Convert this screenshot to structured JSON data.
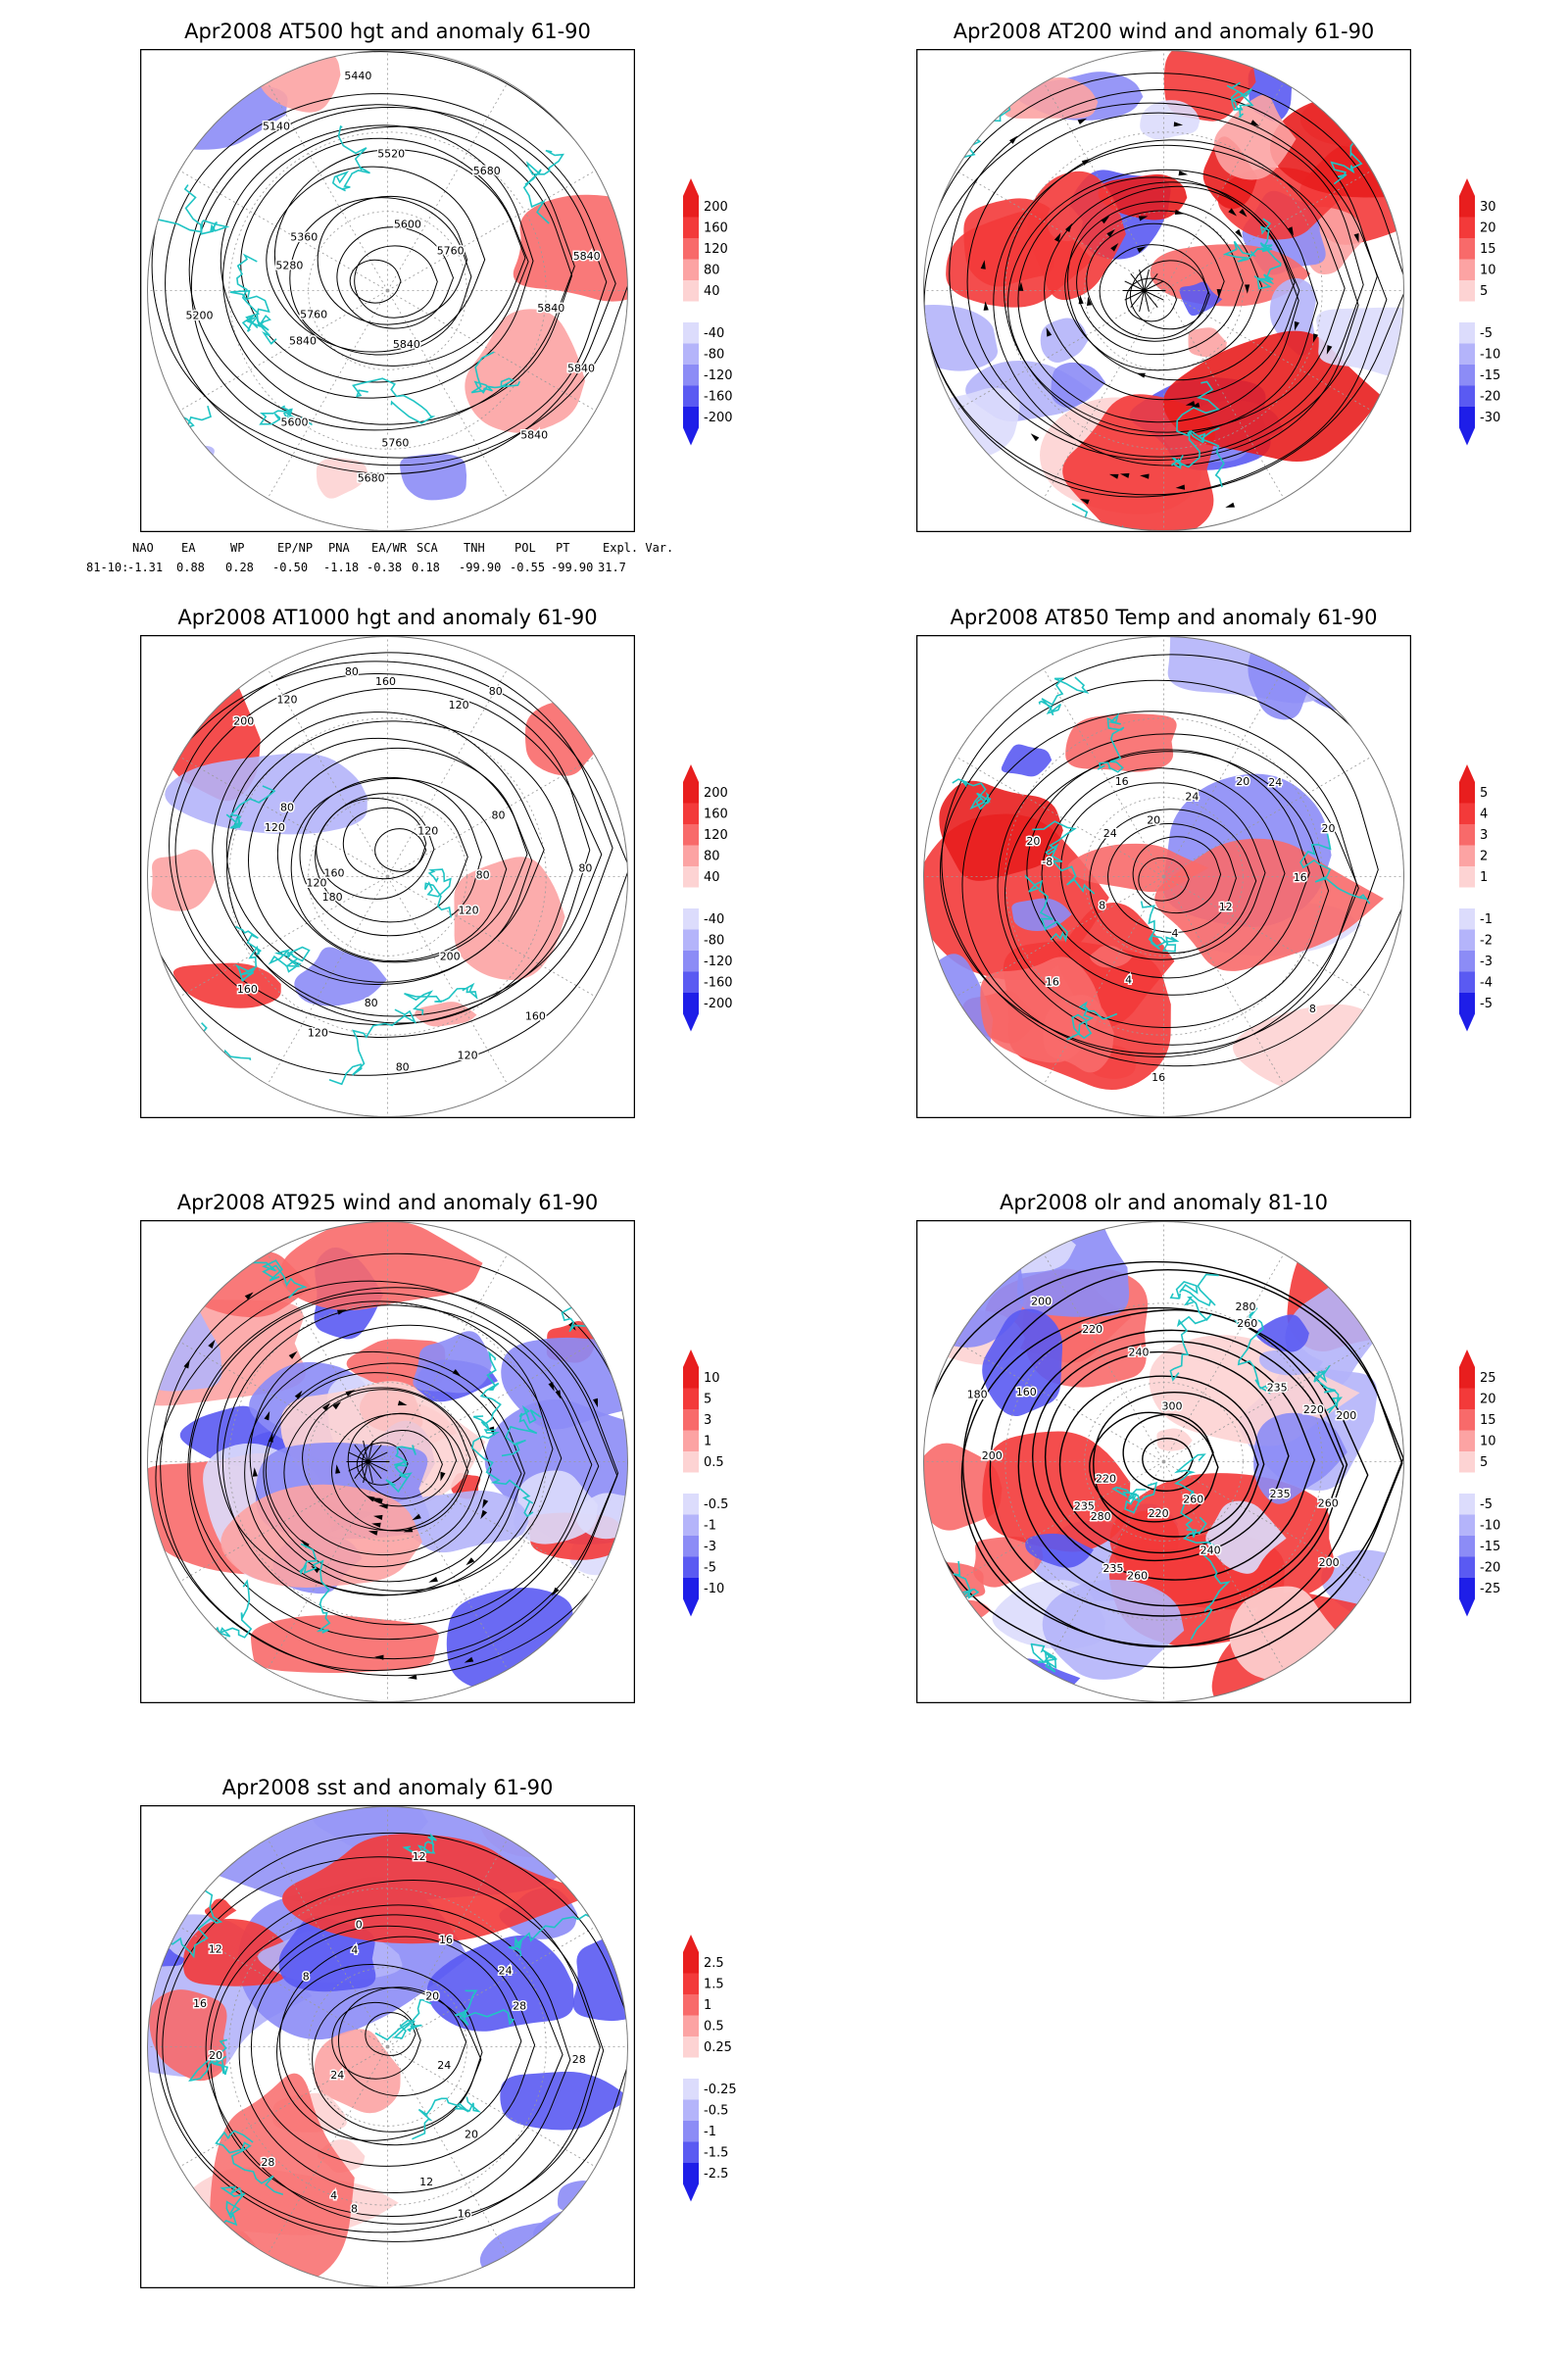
{
  "panels": [
    {
      "id": "at500",
      "title": "Apr2008 AT500 hgt and anomaly 61-90",
      "colorbar": [
        "200",
        "160",
        "120",
        "80",
        "40",
        "-40",
        "-80",
        "-120",
        "-160",
        "-200"
      ],
      "contour_labels": [
        "5840",
        "5840",
        "5840",
        "5840",
        "5760",
        "5680",
        "5600",
        "5840",
        "5760",
        "5200",
        "5280",
        "5360",
        "5140",
        "5440",
        "5520",
        "5600",
        "5680",
        "5760",
        "5840"
      ],
      "style": "height"
    },
    {
      "id": "at200",
      "title": "Apr2008 AT200 wind and anomaly 61-90",
      "colorbar": [
        "30",
        "20",
        "15",
        "10",
        "5",
        "-5",
        "-10",
        "-15",
        "-20",
        "-30"
      ],
      "contour_labels": [],
      "style": "wind"
    },
    {
      "id": "at1000",
      "title": "Apr2008 AT1000 hgt and anomaly 61-90",
      "colorbar": [
        "200",
        "160",
        "120",
        "80",
        "40",
        "-40",
        "-80",
        "-120",
        "-160",
        "-200"
      ],
      "contour_labels": [
        "80",
        "120",
        "160",
        "200",
        "120",
        "80",
        "80",
        "120",
        "160",
        "180",
        "120",
        "160",
        "120",
        "80",
        "200",
        "120",
        "80",
        "160",
        "120",
        "80",
        "120",
        "80",
        "80"
      ],
      "style": "height"
    },
    {
      "id": "at850",
      "title": "Apr2008 AT850 Temp and anomaly 61-90",
      "colorbar": [
        "5",
        "4",
        "3",
        "2",
        "1",
        "-1",
        "-2",
        "-3",
        "-4",
        "-5"
      ],
      "contour_labels": [
        "16",
        "12",
        "8",
        "4",
        "16",
        "4",
        "16",
        "8",
        "-8",
        "20",
        "24",
        "16",
        "20",
        "24",
        "20",
        "24",
        "20"
      ],
      "style": "temp"
    },
    {
      "id": "at925",
      "title": "Apr2008 AT925 wind and anomaly 61-90",
      "colorbar": [
        "10",
        "5",
        "3",
        "1",
        "0.5",
        "-0.5",
        "-1",
        "-3",
        "-5",
        "-10"
      ],
      "contour_labels": [],
      "style": "wind"
    },
    {
      "id": "olr",
      "title": "Apr2008 olr and anomaly 81-10",
      "colorbar": [
        "25",
        "20",
        "15",
        "10",
        "5",
        "-5",
        "-10",
        "-15",
        "-20",
        "-25"
      ],
      "contour_labels": [
        "260",
        "235",
        "200",
        "260",
        "240",
        "220",
        "260",
        "235",
        "280",
        "235",
        "220",
        "200",
        "180",
        "160",
        "200",
        "220",
        "240",
        "300",
        "280",
        "260",
        "235",
        "220",
        "200"
      ],
      "style": "olr"
    },
    {
      "id": "sst",
      "title": "Apr2008 sst and anomaly 61-90",
      "colorbar": [
        "2.5",
        "1.5",
        "1",
        "0.5",
        "0.25",
        "-0.25",
        "-0.5",
        "-1",
        "-1.5",
        "-2.5"
      ],
      "contour_labels": [
        "28",
        "24",
        "20",
        "16",
        "12",
        "8",
        "4",
        "28",
        "24",
        "20",
        "16",
        "12",
        "8",
        "4",
        "0",
        "12",
        "16",
        "20",
        "24",
        "28"
      ],
      "style": "sst"
    }
  ],
  "indices": {
    "headers": [
      "NAO",
      "EA",
      "WP",
      "EP/NP",
      "PNA",
      "EA/WR",
      "SCA",
      "TNH",
      "POL",
      "PT",
      "Expl. Var."
    ],
    "row_label": "81-10:",
    "values": [
      "-1.31",
      "0.88",
      "0.28",
      "-0.50",
      "-1.18",
      "-0.38",
      "0.18",
      "-99.90",
      "-0.55",
      "-99.90",
      "31.7"
    ]
  },
  "colors": {
    "coast": "#20c4c4",
    "contour": "#000000",
    "frame": "#000000",
    "pos_scale": [
      "#e81e1e",
      "#f33a3a",
      "#f86a6a",
      "#fca3a3",
      "#fdd3d3"
    ],
    "neg_scale": [
      "#dcdcfc",
      "#b4b4fa",
      "#8c8cf6",
      "#5a5af2",
      "#1e1ee8"
    ]
  }
}
